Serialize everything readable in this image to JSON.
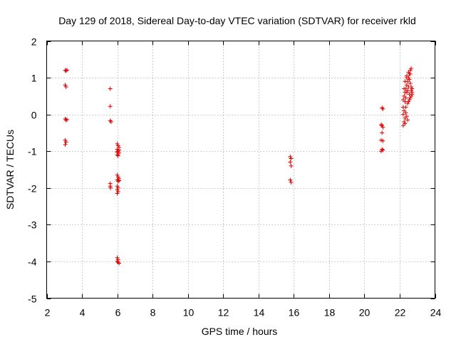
{
  "chart_data": {
    "type": "scatter",
    "title": "Day 129 of 2018, Sidereal Day-to-day VTEC variation (SDTVAR) for receiver rkld",
    "xlabel": "GPS time / hours",
    "ylabel": "SDTVAR / TECUs",
    "xlim": [
      2,
      24
    ],
    "ylim": [
      -5,
      2
    ],
    "xticks": [
      2,
      4,
      6,
      8,
      10,
      12,
      14,
      16,
      18,
      20,
      22,
      24
    ],
    "yticks": [
      -5,
      -4,
      -3,
      -2,
      -1,
      0,
      1,
      2
    ],
    "grid": true,
    "marker": "plus",
    "color": "#e00000",
    "series": [
      {
        "name": "SDTVAR",
        "points": [
          [
            3.05,
            1.2
          ],
          [
            3.1,
            1.19
          ],
          [
            3.15,
            1.21
          ],
          [
            3.05,
            0.8
          ],
          [
            3.1,
            0.75
          ],
          [
            3.05,
            -0.12
          ],
          [
            3.1,
            -0.15
          ],
          [
            3.15,
            -0.14
          ],
          [
            3.05,
            -0.7
          ],
          [
            3.1,
            -0.75
          ],
          [
            3.05,
            -0.82
          ],
          [
            5.6,
            0.7
          ],
          [
            5.6,
            0.22
          ],
          [
            5.6,
            -0.17
          ],
          [
            5.65,
            -0.2
          ],
          [
            5.6,
            -1.88
          ],
          [
            5.6,
            -1.95
          ],
          [
            5.62,
            -2.0
          ],
          [
            6.0,
            -0.8
          ],
          [
            6.05,
            -0.85
          ],
          [
            6.1,
            -0.9
          ],
          [
            6.0,
            -0.95
          ],
          [
            6.05,
            -1.0
          ],
          [
            6.1,
            -1.05
          ],
          [
            6.0,
            -1.1
          ],
          [
            6.05,
            -1.12
          ],
          [
            6.1,
            -0.97
          ],
          [
            5.98,
            -1.02
          ],
          [
            6.0,
            -1.65
          ],
          [
            6.05,
            -1.7
          ],
          [
            6.1,
            -1.75
          ],
          [
            6.0,
            -1.78
          ],
          [
            6.05,
            -1.82
          ],
          [
            6.1,
            -1.8
          ],
          [
            6.0,
            -1.95
          ],
          [
            6.05,
            -2.0
          ],
          [
            6.0,
            -2.05
          ],
          [
            6.05,
            -2.1
          ],
          [
            6.0,
            -2.15
          ],
          [
            6.0,
            -3.9
          ],
          [
            6.05,
            -3.95
          ],
          [
            6.0,
            -4.0
          ],
          [
            6.05,
            -4.02
          ],
          [
            6.1,
            -4.05
          ],
          [
            15.8,
            -1.15
          ],
          [
            15.85,
            -1.2
          ],
          [
            15.8,
            -1.3
          ],
          [
            15.85,
            -1.4
          ],
          [
            15.8,
            -1.78
          ],
          [
            15.85,
            -1.85
          ],
          [
            21.0,
            0.18
          ],
          [
            21.05,
            0.15
          ],
          [
            20.95,
            -0.28
          ],
          [
            21.0,
            -0.3
          ],
          [
            21.05,
            -0.35
          ],
          [
            21.0,
            -0.5
          ],
          [
            20.95,
            -0.7
          ],
          [
            21.05,
            -0.72
          ],
          [
            21.0,
            -0.95
          ],
          [
            20.95,
            -1.0
          ],
          [
            21.05,
            -0.97
          ],
          [
            22.2,
            -0.3
          ],
          [
            22.25,
            -0.2
          ],
          [
            22.3,
            -0.1
          ],
          [
            22.2,
            0.0
          ],
          [
            22.35,
            0.05
          ],
          [
            22.25,
            0.1
          ],
          [
            22.4,
            -0.05
          ],
          [
            22.3,
            -0.25
          ],
          [
            22.45,
            -0.15
          ],
          [
            22.35,
            0.2
          ],
          [
            22.2,
            0.4
          ],
          [
            22.25,
            0.5
          ],
          [
            22.3,
            0.6
          ],
          [
            22.35,
            0.7
          ],
          [
            22.4,
            0.8
          ],
          [
            22.45,
            0.9
          ],
          [
            22.5,
            1.0
          ],
          [
            22.55,
            1.1
          ],
          [
            22.6,
            1.2
          ],
          [
            22.65,
            1.25
          ],
          [
            22.5,
            1.15
          ],
          [
            22.4,
            1.05
          ],
          [
            22.55,
            0.95
          ],
          [
            22.6,
            0.85
          ],
          [
            22.65,
            0.75
          ],
          [
            22.7,
            0.7
          ],
          [
            22.7,
            0.6
          ],
          [
            22.65,
            0.5
          ],
          [
            22.6,
            0.45
          ],
          [
            22.55,
            0.4
          ],
          [
            22.5,
            0.35
          ],
          [
            22.45,
            0.3
          ],
          [
            22.4,
            0.6
          ],
          [
            22.3,
            0.35
          ],
          [
            22.25,
            0.7
          ],
          [
            22.35,
            0.45
          ],
          [
            22.45,
            0.65
          ],
          [
            22.55,
            0.55
          ],
          [
            22.65,
            0.65
          ],
          [
            22.7,
            0.55
          ],
          [
            22.3,
            0.9
          ],
          [
            22.4,
            1.0
          ],
          [
            22.5,
            0.75
          ],
          [
            22.6,
            1.1
          ],
          [
            22.2,
            0.2
          ]
        ]
      }
    ]
  }
}
